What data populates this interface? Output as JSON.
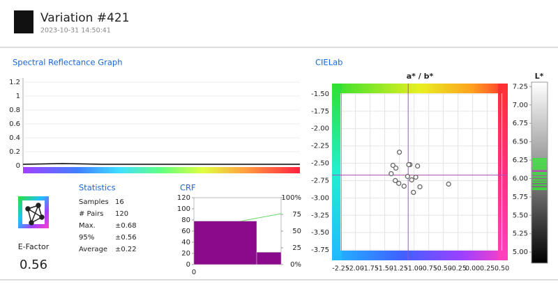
{
  "header": {
    "title": "Variation #421",
    "timestamp": "2023-10-31 14:50:41"
  },
  "efactor": {
    "label": "E-Factor",
    "value": 0.56
  },
  "statistics": {
    "title": "Statistics",
    "rows": [
      [
        "Samples",
        16
      ],
      [
        "# Pairs",
        120
      ],
      [
        "Max.",
        "±0.68"
      ],
      [
        "95%",
        "±0.56"
      ],
      [
        "Average",
        "±0.22"
      ]
    ]
  },
  "chart_data": [
    {
      "type": "line",
      "title": "Spectral Reflectance Graph",
      "categories": [
        null,
        null,
        null,
        null,
        null,
        null,
        null,
        null
      ],
      "values": [
        0.02,
        0.03,
        0.02,
        0.02,
        0.02,
        0.02,
        0.02,
        0.02
      ],
      "color": "#000000",
      "ylim": [
        0,
        1.2
      ],
      "yticks": [
        0,
        0.2,
        0.4,
        0.6,
        0.8,
        1,
        1.2
      ]
    },
    {
      "type": "histogram",
      "title": "CRF",
      "bins": [
        0,
        0.72,
        1
      ],
      "values": [
        78,
        22
      ],
      "color": "#8b0a8b",
      "xlim": [
        0,
        1
      ],
      "xticks": [
        0
      ],
      "ylim": [
        0,
        120
      ],
      "yticks": [
        0,
        20,
        40,
        60,
        80,
        100,
        120
      ],
      "y2lim": [
        0,
        100
      ],
      "y2ticks": [
        {
          "value": 0,
          "label": "0%"
        },
        {
          "value": 25,
          "label": "25"
        },
        {
          "value": 50,
          "label": "50"
        },
        {
          "value": 75,
          "label": "75"
        },
        {
          "value": 100,
          "label": "100%"
        }
      ],
      "cumulative": {
        "x": [
          0.54,
          1
        ],
        "values": [
          65,
          76
        ],
        "axis": "y2",
        "color": "#66d966"
      }
    },
    {
      "type": "scatter",
      "title": "CIELab",
      "subtitle": "a* / b*",
      "x": [
        -1.25,
        -1.36,
        -1.31,
        -1.07,
        -1.09,
        -0.94,
        -1.39,
        -1.11,
        -1.04,
        -0.97,
        -1.32,
        -1.26,
        -1.17,
        -0.9,
        -1.01,
        -0.41
      ],
      "y": [
        -2.34,
        -2.53,
        -2.57,
        -2.52,
        -2.52,
        -2.54,
        -2.65,
        -2.69,
        -2.74,
        -2.7,
        -2.75,
        -2.79,
        -2.83,
        -2.84,
        -2.92,
        -2.8
      ],
      "color": "#666666",
      "xlim": [
        -2.4,
        0.6
      ],
      "ylim": [
        -3.9,
        -1.35
      ],
      "xticks": [
        -2.25,
        {
          "value": -2,
          "label": "-2.00"
        },
        -1.75,
        {
          "value": -1.5,
          "label": "-1.50"
        },
        -1.25,
        {
          "value": -1,
          "label": "-1.00"
        },
        -0.75,
        {
          "value": -0.5,
          "label": "-0.50"
        },
        -0.25,
        {
          "value": 0,
          "label": "0.00"
        },
        0.25,
        {
          "value": 0.5,
          "label": "0.50"
        }
      ],
      "yticks": [
        {
          "value": -1.5,
          "label": "-1.50"
        },
        -1.75,
        {
          "value": -2,
          "label": "-2.00"
        },
        -2.25,
        {
          "value": -2.5,
          "label": "-2.50"
        },
        -2.75,
        {
          "value": -3,
          "label": "-3.00"
        },
        -3.25,
        {
          "value": -3.5,
          "label": "-3.50"
        },
        -3.75
      ],
      "crosshair": {
        "x": -1.1,
        "y": -2.67,
        "color": "#b04fb0"
      }
    },
    {
      "type": "strip",
      "title": "L*",
      "values": [
        6.27,
        6.25,
        6.23,
        6.21,
        6.19,
        6.17,
        6.15,
        6.13,
        6.08,
        6.06,
        6.02,
        5.98,
        5.95,
        5.91,
        5.87,
        5.85
      ],
      "color": "#33ee33",
      "mean": 6.1,
      "mean_color": "#b04fb0",
      "ylim": [
        4.85,
        7.31
      ],
      "yticks": [
        7.25,
        {
          "value": 7,
          "label": "7.00"
        },
        6.75,
        {
          "value": 6.5,
          "label": "6.50"
        },
        6.25,
        {
          "value": 6,
          "label": "6.00"
        },
        5.75,
        {
          "value": 5.5,
          "label": "5.50"
        },
        5.25,
        {
          "value": 5,
          "label": "5.00"
        }
      ]
    }
  ]
}
